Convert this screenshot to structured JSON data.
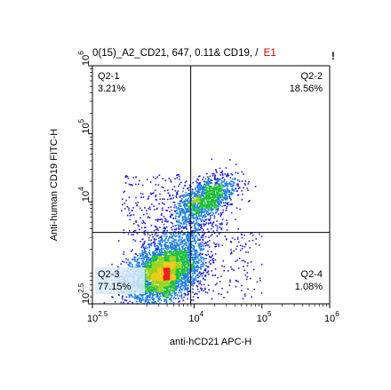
{
  "chart_data": {
    "type": "scatter",
    "title_main": "0(15)_A2_CD21, 647, 0.11& CD19, /",
    "title_suffix": "E1",
    "title_marker": "!",
    "xlabel": "anti-hCD21 APC-H",
    "ylabel": "Anti-human CD19 FITC-H",
    "x_scale": "log",
    "y_scale": "log",
    "xlim_log10": [
      2.5,
      6
    ],
    "ylim_log10": [
      2.5,
      6
    ],
    "x_ticks": [
      {
        "base": "10",
        "exp": "2.5",
        "value_log10": 2.5
      },
      {
        "base": "10",
        "exp": "4",
        "value_log10": 4
      },
      {
        "base": "10",
        "exp": "5",
        "value_log10": 5
      },
      {
        "base": "10",
        "exp": "6",
        "value_log10": 6
      }
    ],
    "y_ticks": [
      {
        "base": "10",
        "exp": "2.5",
        "value_log10": 2.5
      },
      {
        "base": "10",
        "exp": "4",
        "value_log10": 4
      },
      {
        "base": "10",
        "exp": "5",
        "value_log10": 5
      },
      {
        "base": "10",
        "exp": "6",
        "value_log10": 6
      }
    ],
    "gate_x_log10": 3.95,
    "gate_y_log10": 3.55,
    "quadrants": [
      {
        "name": "Q2-1",
        "percent": "3.21%",
        "position": "top-left"
      },
      {
        "name": "Q2-2",
        "percent": "18.56%",
        "position": "top-right"
      },
      {
        "name": "Q2-3",
        "percent": "77.15%",
        "position": "bottom-left"
      },
      {
        "name": "Q2-4",
        "percent": "1.08%",
        "position": "bottom-right"
      }
    ],
    "populations": [
      {
        "quadrant": "Q2-3",
        "center_log10": [
          3.55,
          2.95
        ],
        "spread_log10": [
          0.28,
          0.22
        ],
        "density_colormap": "pseudocolor"
      },
      {
        "quadrant": "Q2-2",
        "center_log10": [
          4.18,
          4.05
        ],
        "spread_log10": [
          0.22,
          0.18
        ],
        "density_colormap": "pseudocolor"
      }
    ],
    "colors": {
      "low_density": "#1f1fd6",
      "mid_density": "#1fbf3a",
      "high_density": "#f2c81a",
      "peak_density": "#e8231c",
      "gate_lines": "#000000",
      "title_accent": "#d40000"
    }
  }
}
